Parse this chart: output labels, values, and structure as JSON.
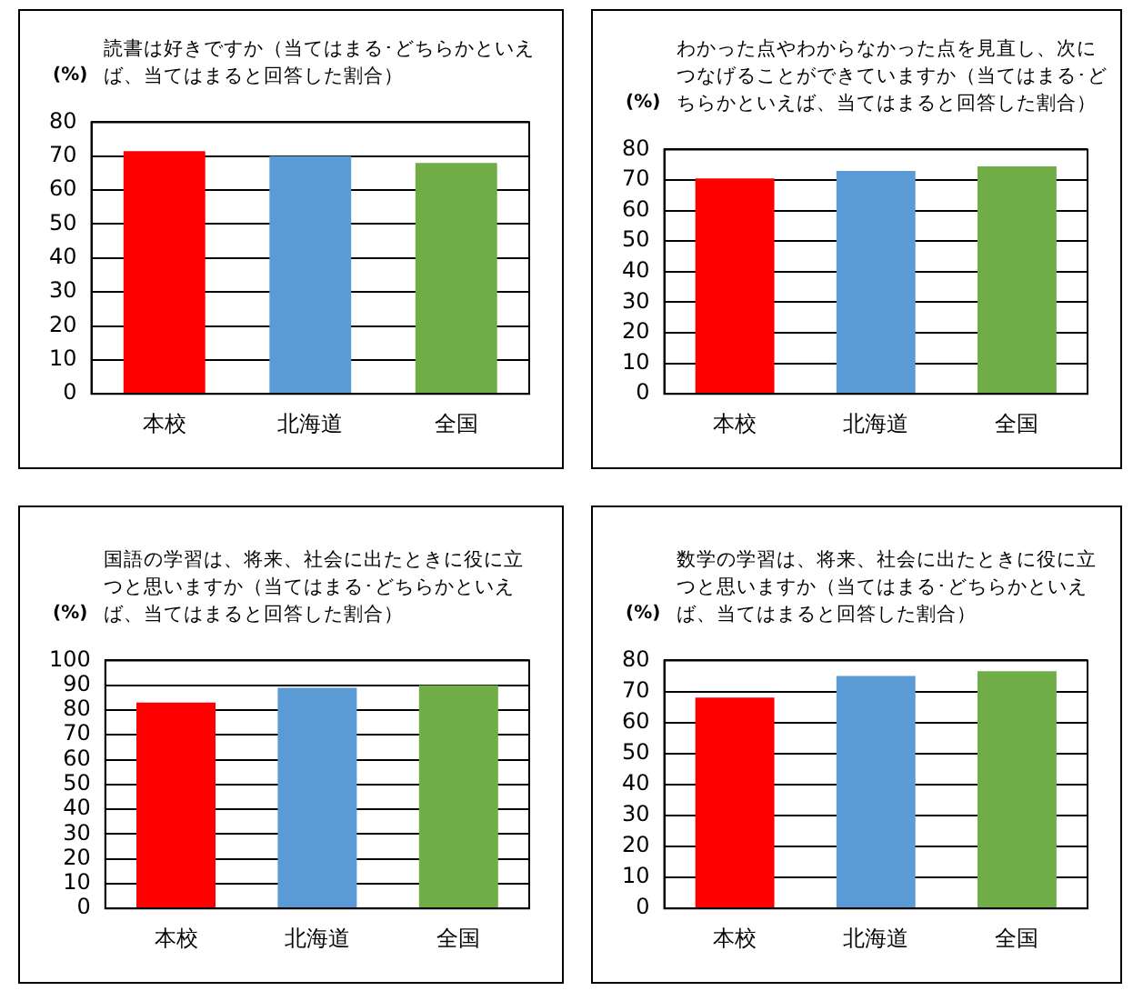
{
  "chart_data": [
    {
      "type": "bar",
      "title": "読書は好きですか（当てはまる･どちらかといえば、当てはまると回答した割合）",
      "ylabel": "(%)",
      "categories": [
        "本校",
        "北海道",
        "全国"
      ],
      "values": [
        71.5,
        70,
        68
      ],
      "colors": [
        "#ff0000",
        "#5b9bd5",
        "#70ad47"
      ],
      "ylim": [
        0,
        80
      ],
      "yticks": [
        0,
        10,
        20,
        30,
        40,
        50,
        60,
        70,
        80
      ],
      "grid": "y"
    },
    {
      "type": "bar",
      "title": "わかった点やわからなかった点を見直し、次につなげることができていますか（当てはまる･どちらかといえば、当てはまると回答した割合）",
      "ylabel": "(%)",
      "categories": [
        "本校",
        "北海道",
        "全国"
      ],
      "values": [
        70.5,
        73,
        74.5
      ],
      "colors": [
        "#ff0000",
        "#5b9bd5",
        "#70ad47"
      ],
      "ylim": [
        0,
        80
      ],
      "yticks": [
        0,
        10,
        20,
        30,
        40,
        50,
        60,
        70,
        80
      ],
      "grid": "y"
    },
    {
      "type": "bar",
      "title": "国語の学習は、将来、社会に出たときに役に立つと思いますか（当てはまる･どちらかといえば、当てはまると回答した割合）",
      "ylabel": "(%)",
      "categories": [
        "本校",
        "北海道",
        "全国"
      ],
      "values": [
        83,
        89,
        90
      ],
      "colors": [
        "#ff0000",
        "#5b9bd5",
        "#70ad47"
      ],
      "ylim": [
        0,
        100
      ],
      "yticks": [
        0,
        10,
        20,
        30,
        40,
        50,
        60,
        70,
        80,
        90,
        100
      ],
      "grid": "y"
    },
    {
      "type": "bar",
      "title": "数学の学習は、将来、社会に出たときに役に立つと思いますか（当てはまる･どちらかといえば、当てはまると回答した割合）",
      "ylabel": "(%)",
      "categories": [
        "本校",
        "北海道",
        "全国"
      ],
      "values": [
        68,
        75,
        76.5
      ],
      "colors": [
        "#ff0000",
        "#5b9bd5",
        "#70ad47"
      ],
      "ylim": [
        0,
        80
      ],
      "yticks": [
        0,
        10,
        20,
        30,
        40,
        50,
        60,
        70,
        80
      ],
      "grid": "y"
    }
  ]
}
